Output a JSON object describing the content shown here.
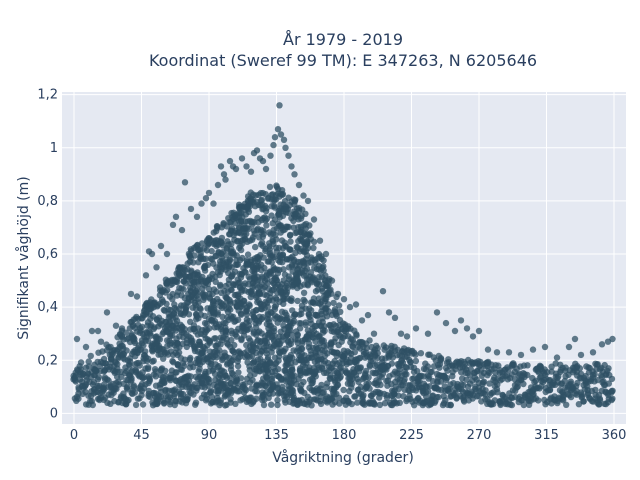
{
  "chart_data": {
    "type": "scatter",
    "title_line1": "År 1979 - 2019",
    "title_line2": "Koordinat (Sweref 99 TM): E 347263, N 6205646",
    "xlabel": "Vågriktning (grader)",
    "ylabel": "Signifikant våghöjd (m)",
    "xlim": [
      -8,
      368
    ],
    "ylim": [
      -0.04,
      1.21
    ],
    "xticks": [
      0,
      45,
      90,
      135,
      180,
      225,
      270,
      315,
      360
    ],
    "xtick_labels": [
      "0",
      "45",
      "90",
      "135",
      "180",
      "225",
      "270",
      "315",
      "360"
    ],
    "yticks": [
      0,
      0.2,
      0.4,
      0.6,
      0.8,
      1.0,
      1.2
    ],
    "ytick_labels": [
      "0",
      "0,2",
      "0,4",
      "0,6",
      "0,8",
      "1",
      "1,2"
    ],
    "grid": true,
    "marker_color": "#2f5064",
    "envelope": {
      "x": [
        0,
        15,
        30,
        45,
        60,
        75,
        90,
        105,
        120,
        135,
        150,
        165,
        180,
        195,
        210,
        225,
        240,
        255,
        270,
        285,
        300,
        315,
        330,
        345,
        360
      ],
      "y_max": [
        0.18,
        0.23,
        0.3,
        0.4,
        0.5,
        0.6,
        0.68,
        0.76,
        0.84,
        0.86,
        0.8,
        0.6,
        0.35,
        0.28,
        0.26,
        0.24,
        0.22,
        0.21,
        0.2,
        0.19,
        0.19,
        0.19,
        0.19,
        0.19,
        0.18
      ],
      "y_min": [
        0.03,
        0.03,
        0.03,
        0.03,
        0.03,
        0.03,
        0.03,
        0.03,
        0.03,
        0.03,
        0.03,
        0.03,
        0.03,
        0.03,
        0.03,
        0.03,
        0.03,
        0.03,
        0.03,
        0.03,
        0.03,
        0.03,
        0.03,
        0.03,
        0.03
      ]
    },
    "outliers": [
      {
        "x": 2,
        "y": 0.28
      },
      {
        "x": 8,
        "y": 0.25
      },
      {
        "x": 12,
        "y": 0.31
      },
      {
        "x": 16,
        "y": 0.31
      },
      {
        "x": 18,
        "y": 0.27
      },
      {
        "x": 22,
        "y": 0.38
      },
      {
        "x": 28,
        "y": 0.33
      },
      {
        "x": 32,
        "y": 0.32
      },
      {
        "x": 38,
        "y": 0.45
      },
      {
        "x": 42,
        "y": 0.44
      },
      {
        "x": 48,
        "y": 0.52
      },
      {
        "x": 50,
        "y": 0.61
      },
      {
        "x": 52,
        "y": 0.6
      },
      {
        "x": 55,
        "y": 0.55
      },
      {
        "x": 58,
        "y": 0.63
      },
      {
        "x": 62,
        "y": 0.6
      },
      {
        "x": 66,
        "y": 0.71
      },
      {
        "x": 68,
        "y": 0.74
      },
      {
        "x": 72,
        "y": 0.69
      },
      {
        "x": 74,
        "y": 0.87
      },
      {
        "x": 78,
        "y": 0.77
      },
      {
        "x": 82,
        "y": 0.74
      },
      {
        "x": 85,
        "y": 0.79
      },
      {
        "x": 88,
        "y": 0.81
      },
      {
        "x": 90,
        "y": 0.83
      },
      {
        "x": 93,
        "y": 0.79
      },
      {
        "x": 96,
        "y": 0.86
      },
      {
        "x": 98,
        "y": 0.93
      },
      {
        "x": 100,
        "y": 0.9
      },
      {
        "x": 101,
        "y": 0.88
      },
      {
        "x": 104,
        "y": 0.95
      },
      {
        "x": 106,
        "y": 0.93
      },
      {
        "x": 108,
        "y": 0.92
      },
      {
        "x": 112,
        "y": 0.96
      },
      {
        "x": 115,
        "y": 0.93
      },
      {
        "x": 118,
        "y": 0.91
      },
      {
        "x": 120,
        "y": 0.98
      },
      {
        "x": 122,
        "y": 0.99
      },
      {
        "x": 124,
        "y": 0.96
      },
      {
        "x": 126,
        "y": 0.95
      },
      {
        "x": 128,
        "y": 0.92
      },
      {
        "x": 131,
        "y": 0.97
      },
      {
        "x": 133,
        "y": 1.01
      },
      {
        "x": 134,
        "y": 1.04
      },
      {
        "x": 136,
        "y": 1.07
      },
      {
        "x": 137,
        "y": 1.16
      },
      {
        "x": 138,
        "y": 1.05
      },
      {
        "x": 140,
        "y": 1.03
      },
      {
        "x": 141,
        "y": 1.0
      },
      {
        "x": 143,
        "y": 0.97
      },
      {
        "x": 145,
        "y": 0.93
      },
      {
        "x": 147,
        "y": 0.9
      },
      {
        "x": 150,
        "y": 0.86
      },
      {
        "x": 153,
        "y": 0.82
      },
      {
        "x": 156,
        "y": 0.8
      },
      {
        "x": 160,
        "y": 0.73
      },
      {
        "x": 164,
        "y": 0.65
      },
      {
        "x": 168,
        "y": 0.6
      },
      {
        "x": 172,
        "y": 0.5
      },
      {
        "x": 176,
        "y": 0.45
      },
      {
        "x": 180,
        "y": 0.43
      },
      {
        "x": 184,
        "y": 0.4
      },
      {
        "x": 188,
        "y": 0.41
      },
      {
        "x": 192,
        "y": 0.35
      },
      {
        "x": 196,
        "y": 0.37
      },
      {
        "x": 200,
        "y": 0.3
      },
      {
        "x": 206,
        "y": 0.46
      },
      {
        "x": 210,
        "y": 0.38
      },
      {
        "x": 214,
        "y": 0.36
      },
      {
        "x": 218,
        "y": 0.3
      },
      {
        "x": 222,
        "y": 0.29
      },
      {
        "x": 228,
        "y": 0.32
      },
      {
        "x": 236,
        "y": 0.3
      },
      {
        "x": 242,
        "y": 0.38
      },
      {
        "x": 248,
        "y": 0.34
      },
      {
        "x": 254,
        "y": 0.31
      },
      {
        "x": 258,
        "y": 0.35
      },
      {
        "x": 262,
        "y": 0.32
      },
      {
        "x": 266,
        "y": 0.29
      },
      {
        "x": 270,
        "y": 0.31
      },
      {
        "x": 276,
        "y": 0.24
      },
      {
        "x": 282,
        "y": 0.23
      },
      {
        "x": 290,
        "y": 0.23
      },
      {
        "x": 298,
        "y": 0.22
      },
      {
        "x": 306,
        "y": 0.24
      },
      {
        "x": 314,
        "y": 0.25
      },
      {
        "x": 322,
        "y": 0.21
      },
      {
        "x": 330,
        "y": 0.25
      },
      {
        "x": 334,
        "y": 0.28
      },
      {
        "x": 338,
        "y": 0.22
      },
      {
        "x": 346,
        "y": 0.23
      },
      {
        "x": 352,
        "y": 0.26
      },
      {
        "x": 356,
        "y": 0.27
      },
      {
        "x": 359,
        "y": 0.28
      }
    ]
  }
}
